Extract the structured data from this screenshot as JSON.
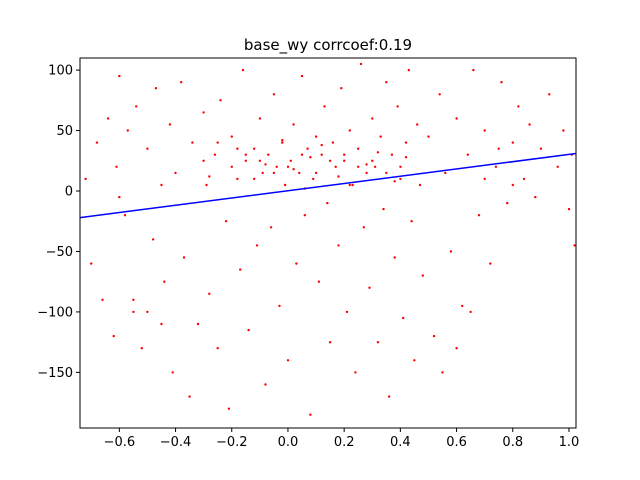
{
  "chart_data": {
    "type": "scatter",
    "title": "base_wy corrcoef:0.19",
    "xlabel": "",
    "ylabel": "",
    "xlim": [
      -0.74,
      1.025
    ],
    "ylim": [
      -196,
      110
    ],
    "x_ticks": [
      -0.6,
      -0.4,
      -0.2,
      0.0,
      0.2,
      0.4,
      0.6,
      0.8,
      1.0
    ],
    "x_tick_labels": [
      "−0.6",
      "−0.4",
      "−0.2",
      "0.0",
      "0.2",
      "0.4",
      "0.6",
      "0.8",
      "1.0"
    ],
    "y_ticks": [
      -150,
      -100,
      -50,
      0,
      50,
      100
    ],
    "y_tick_labels": [
      "−150",
      "−100",
      "−50",
      "0",
      "50",
      "100"
    ],
    "grid": false,
    "colors": {
      "points": "#ff0000",
      "fit_line": "#0000ff"
    },
    "fit_line": {
      "x": [
        -0.74,
        1.025
      ],
      "y": [
        -22,
        31
      ]
    },
    "series": [
      {
        "values_xy": [
          [
            -0.72,
            10
          ],
          [
            -0.7,
            -60
          ],
          [
            -0.68,
            40
          ],
          [
            -0.66,
            -90
          ],
          [
            -0.64,
            60
          ],
          [
            -0.62,
            -120
          ],
          [
            -0.61,
            20
          ],
          [
            -0.6,
            95
          ],
          [
            -0.58,
            -20
          ],
          [
            -0.57,
            50
          ],
          [
            -0.55,
            -100
          ],
          [
            -0.54,
            70
          ],
          [
            -0.52,
            -130
          ],
          [
            -0.5,
            35
          ],
          [
            -0.48,
            -40
          ],
          [
            -0.47,
            85
          ],
          [
            -0.45,
            5
          ],
          [
            -0.44,
            -75
          ],
          [
            -0.42,
            55
          ],
          [
            -0.41,
            -150
          ],
          [
            -0.4,
            15
          ],
          [
            -0.38,
            90
          ],
          [
            -0.37,
            -55
          ],
          [
            -0.35,
            -170
          ],
          [
            -0.34,
            40
          ],
          [
            -0.32,
            -110
          ],
          [
            -0.3,
            65
          ],
          [
            -0.29,
            5
          ],
          [
            -0.28,
            -85
          ],
          [
            -0.26,
            30
          ],
          [
            -0.25,
            -130
          ],
          [
            -0.24,
            75
          ],
          [
            -0.22,
            -25
          ],
          [
            -0.21,
            -180
          ],
          [
            -0.2,
            45
          ],
          [
            -0.18,
            10
          ],
          [
            -0.17,
            -65
          ],
          [
            -0.16,
            100
          ],
          [
            -0.15,
            25
          ],
          [
            -0.14,
            -115
          ],
          [
            -0.12,
            35
          ],
          [
            -0.11,
            -45
          ],
          [
            -0.1,
            60
          ],
          [
            -0.09,
            15
          ],
          [
            -0.08,
            -160
          ],
          [
            -0.07,
            30
          ],
          [
            -0.06,
            -30
          ],
          [
            -0.05,
            80
          ],
          [
            -0.04,
            20
          ],
          [
            -0.03,
            -95
          ],
          [
            -0.02,
            40
          ],
          [
            -0.01,
            5
          ],
          [
            0.0,
            -140
          ],
          [
            0.01,
            25
          ],
          [
            0.02,
            55
          ],
          [
            0.03,
            -60
          ],
          [
            0.04,
            15
          ],
          [
            0.05,
            95
          ],
          [
            0.06,
            -20
          ],
          [
            0.07,
            35
          ],
          [
            0.08,
            -185
          ],
          [
            0.09,
            10
          ],
          [
            0.1,
            45
          ],
          [
            0.11,
            -75
          ],
          [
            0.12,
            30
          ],
          [
            0.13,
            70
          ],
          [
            0.14,
            -10
          ],
          [
            0.15,
            -125
          ],
          [
            0.16,
            40
          ],
          [
            0.17,
            20
          ],
          [
            0.18,
            -45
          ],
          [
            0.19,
            85
          ],
          [
            0.2,
            25
          ],
          [
            0.21,
            -100
          ],
          [
            0.22,
            50
          ],
          [
            0.23,
            5
          ],
          [
            0.24,
            -150
          ],
          [
            0.25,
            35
          ],
          [
            0.26,
            105
          ],
          [
            0.27,
            -30
          ],
          [
            0.28,
            15
          ],
          [
            0.29,
            -80
          ],
          [
            0.3,
            60
          ],
          [
            0.31,
            20
          ],
          [
            0.32,
            -125
          ],
          [
            0.33,
            45
          ],
          [
            0.34,
            -15
          ],
          [
            0.35,
            90
          ],
          [
            0.36,
            -170
          ],
          [
            0.37,
            30
          ],
          [
            0.38,
            -55
          ],
          [
            0.39,
            70
          ],
          [
            0.4,
            10
          ],
          [
            0.41,
            -105
          ],
          [
            0.42,
            40
          ],
          [
            0.43,
            100
          ],
          [
            0.44,
            -25
          ],
          [
            0.45,
            -140
          ],
          [
            0.46,
            55
          ],
          [
            0.47,
            5
          ],
          [
            0.48,
            -70
          ],
          [
            0.5,
            45
          ],
          [
            0.52,
            -120
          ],
          [
            0.54,
            80
          ],
          [
            0.56,
            15
          ],
          [
            0.58,
            -50
          ],
          [
            0.6,
            60
          ],
          [
            0.62,
            -95
          ],
          [
            0.64,
            30
          ],
          [
            0.66,
            100
          ],
          [
            0.68,
            -20
          ],
          [
            0.7,
            50
          ],
          [
            0.72,
            -60
          ],
          [
            0.74,
            20
          ],
          [
            0.76,
            90
          ],
          [
            0.78,
            -10
          ],
          [
            0.8,
            40
          ],
          [
            0.82,
            70
          ],
          [
            0.84,
            10
          ],
          [
            0.86,
            55
          ],
          [
            0.88,
            -5
          ],
          [
            0.9,
            35
          ],
          [
            0.93,
            80
          ],
          [
            0.96,
            20
          ],
          [
            0.98,
            50
          ],
          [
            1.0,
            -15
          ],
          [
            1.01,
            30
          ],
          [
            1.02,
            -45
          ],
          [
            -0.3,
            25
          ],
          [
            -0.25,
            40
          ],
          [
            -0.2,
            20
          ],
          [
            -0.15,
            30
          ],
          [
            -0.1,
            25
          ],
          [
            -0.05,
            15
          ],
          [
            0.0,
            20
          ],
          [
            0.05,
            30
          ],
          [
            0.1,
            15
          ],
          [
            0.15,
            25
          ],
          [
            0.2,
            30
          ],
          [
            0.25,
            20
          ],
          [
            0.3,
            25
          ],
          [
            0.35,
            15
          ],
          [
            0.4,
            20
          ],
          [
            -0.12,
            10
          ],
          [
            -0.08,
            22
          ],
          [
            0.02,
            18
          ],
          [
            0.08,
            28
          ],
          [
            0.18,
            12
          ],
          [
            0.28,
            22
          ],
          [
            0.38,
            8
          ],
          [
            -0.18,
            35
          ],
          [
            0.12,
            38
          ],
          [
            0.32,
            32
          ],
          [
            -0.28,
            12
          ],
          [
            0.22,
            5
          ],
          [
            0.42,
            28
          ],
          [
            -0.02,
            42
          ],
          [
            0.06,
            2
          ],
          [
            -0.5,
            -100
          ],
          [
            -0.45,
            -110
          ],
          [
            -0.55,
            -90
          ],
          [
            0.6,
            -130
          ],
          [
            0.65,
            -100
          ],
          [
            0.55,
            -150
          ],
          [
            -0.6,
            -5
          ],
          [
            0.7,
            10
          ],
          [
            0.75,
            35
          ],
          [
            0.8,
            5
          ]
        ]
      }
    ]
  }
}
